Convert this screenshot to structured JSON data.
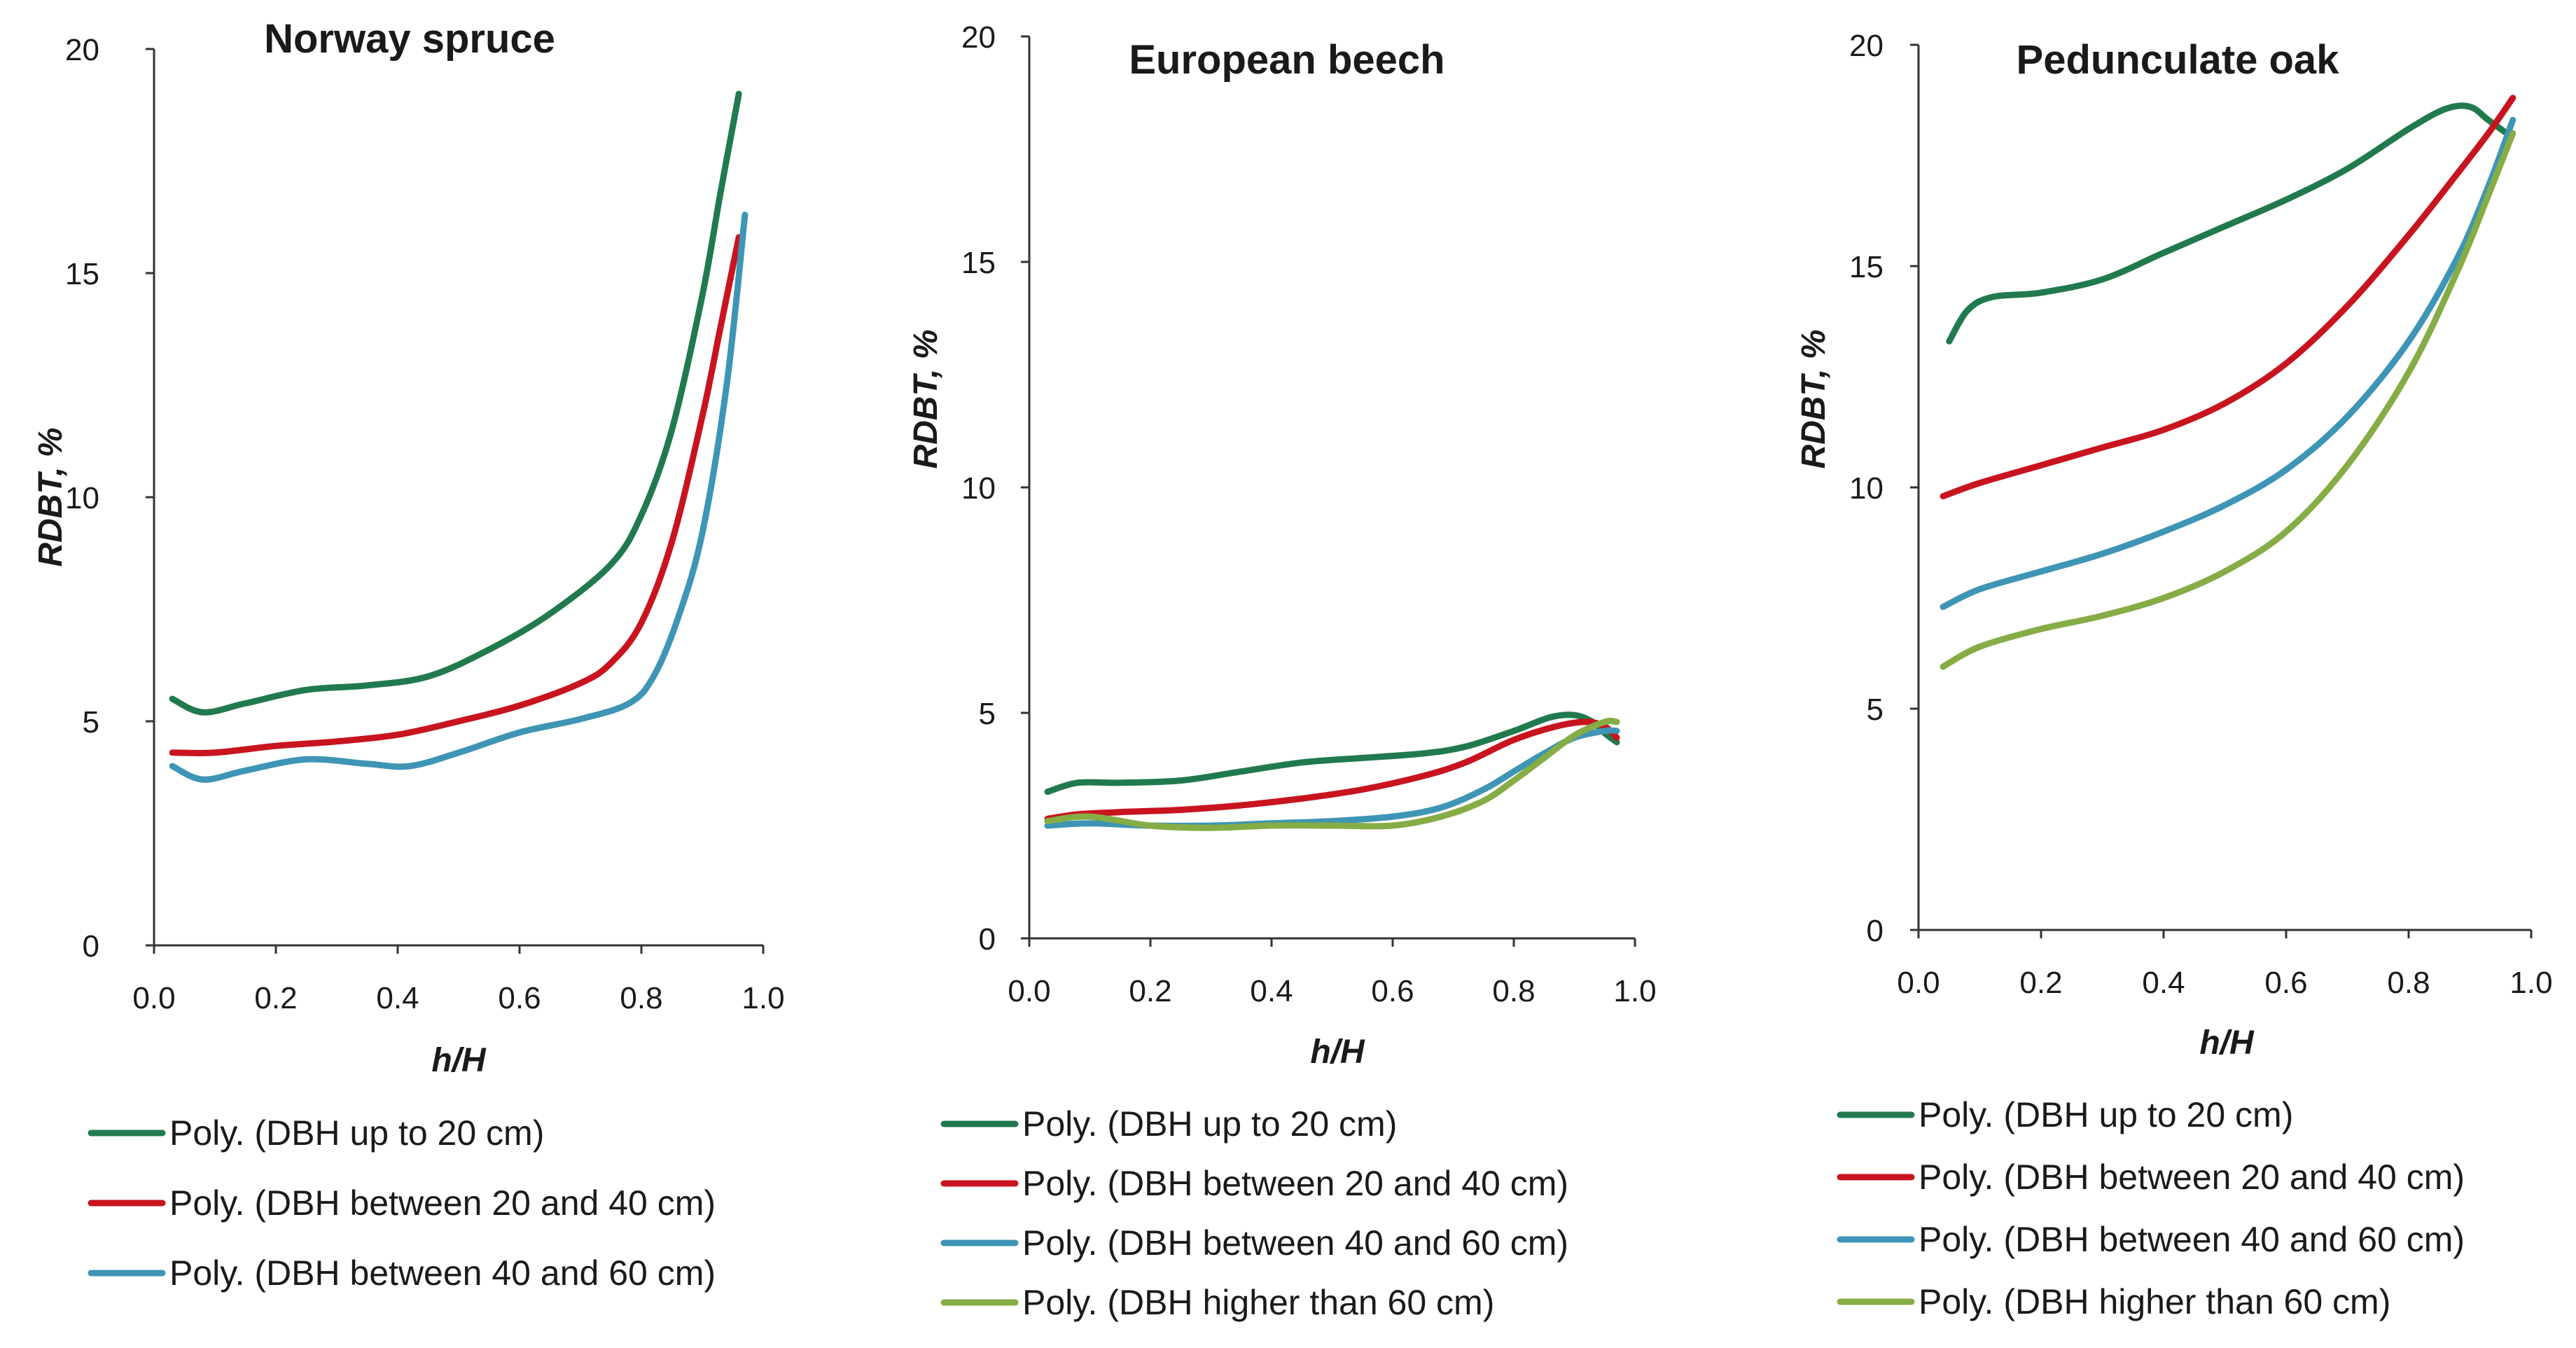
{
  "colors": {
    "dbh_up_to_20": "#217a4e",
    "dbh_20_40": "#c8141e",
    "dbh_40_60": "#3e95b5",
    "dbh_over_60": "#86ac45"
  },
  "chart_data": [
    {
      "type": "line",
      "title": "Norway spruce",
      "xlabel": "h/H",
      "ylabel": "RDBT, %",
      "xlim": [
        0,
        1.0
      ],
      "ylim": [
        0,
        20
      ],
      "xticks": [
        "0.0",
        "0.2",
        "0.4",
        "0.6",
        "0.8",
        "1.0"
      ],
      "yticks": [
        "0",
        "5",
        "10",
        "15",
        "20"
      ],
      "series": [
        {
          "name": "Poly. (DBH up to 20 cm)",
          "color_key": "dbh_up_to_20",
          "x": [
            0.03,
            0.08,
            0.15,
            0.25,
            0.35,
            0.45,
            0.55,
            0.65,
            0.75,
            0.8,
            0.85,
            0.9,
            0.93,
            0.96
          ],
          "y": [
            5.5,
            5.2,
            5.4,
            5.7,
            5.8,
            6.0,
            6.6,
            7.4,
            8.5,
            9.6,
            11.5,
            14.5,
            16.8,
            19.0
          ]
        },
        {
          "name": "Poly. (DBH between 20 and 40 cm)",
          "color_key": "dbh_20_40",
          "x": [
            0.03,
            0.1,
            0.2,
            0.3,
            0.4,
            0.5,
            0.6,
            0.7,
            0.75,
            0.8,
            0.85,
            0.9,
            0.93,
            0.96
          ],
          "y": [
            4.3,
            4.3,
            4.45,
            4.55,
            4.7,
            5.0,
            5.35,
            5.85,
            6.3,
            7.2,
            9.0,
            11.8,
            13.8,
            15.8
          ]
        },
        {
          "name": "Poly. (DBH between 40 and 60 cm)",
          "color_key": "dbh_40_60",
          "x": [
            0.03,
            0.08,
            0.15,
            0.25,
            0.35,
            0.42,
            0.5,
            0.6,
            0.7,
            0.78,
            0.82,
            0.86,
            0.9,
            0.94,
            0.97
          ],
          "y": [
            4.0,
            3.7,
            3.9,
            4.15,
            4.05,
            4.0,
            4.3,
            4.75,
            5.05,
            5.4,
            6.0,
            7.3,
            9.2,
            12.5,
            16.3
          ]
        }
      ]
    },
    {
      "type": "line",
      "title": "European beech",
      "xlabel": "h/H",
      "ylabel": "RDBT, %",
      "xlim": [
        0,
        1.0
      ],
      "ylim": [
        0,
        20
      ],
      "xticks": [
        "0.0",
        "0.2",
        "0.4",
        "0.6",
        "0.8",
        "1.0"
      ],
      "yticks": [
        "0",
        "5",
        "10",
        "15",
        "20"
      ],
      "series": [
        {
          "name": "Poly. (DBH up to 20 cm)",
          "color_key": "dbh_up_to_20",
          "x": [
            0.03,
            0.08,
            0.15,
            0.25,
            0.35,
            0.45,
            0.55,
            0.65,
            0.72,
            0.8,
            0.86,
            0.9,
            0.93,
            0.95,
            0.97
          ],
          "y": [
            3.25,
            3.45,
            3.45,
            3.5,
            3.7,
            3.9,
            4.0,
            4.1,
            4.25,
            4.6,
            4.9,
            4.95,
            4.8,
            4.55,
            4.35
          ]
        },
        {
          "name": "Poly. (DBH between 20 and 40 cm)",
          "color_key": "dbh_20_40",
          "x": [
            0.03,
            0.08,
            0.15,
            0.25,
            0.35,
            0.45,
            0.55,
            0.65,
            0.72,
            0.8,
            0.87,
            0.92,
            0.95,
            0.97
          ],
          "y": [
            2.65,
            2.75,
            2.8,
            2.85,
            2.95,
            3.1,
            3.3,
            3.6,
            3.9,
            4.4,
            4.7,
            4.8,
            4.7,
            4.45
          ]
        },
        {
          "name": "Poly. (DBH between 40 and 60 cm)",
          "color_key": "dbh_40_60",
          "x": [
            0.03,
            0.1,
            0.2,
            0.3,
            0.4,
            0.5,
            0.6,
            0.68,
            0.75,
            0.8,
            0.85,
            0.9,
            0.95,
            0.97
          ],
          "y": [
            2.5,
            2.55,
            2.5,
            2.5,
            2.55,
            2.6,
            2.7,
            2.9,
            3.3,
            3.7,
            4.1,
            4.45,
            4.6,
            4.6
          ]
        },
        {
          "name": "Poly. (DBH higher than 60 cm)",
          "color_key": "dbh_over_60",
          "x": [
            0.03,
            0.1,
            0.2,
            0.3,
            0.4,
            0.5,
            0.6,
            0.68,
            0.75,
            0.8,
            0.85,
            0.9,
            0.95,
            0.97
          ],
          "y": [
            2.6,
            2.7,
            2.5,
            2.45,
            2.5,
            2.5,
            2.5,
            2.7,
            3.05,
            3.5,
            4.0,
            4.5,
            4.8,
            4.8
          ]
        }
      ]
    },
    {
      "type": "line",
      "title": "Pedunculate oak",
      "xlabel": "h/H",
      "ylabel": "RDBT, %",
      "xlim": [
        0,
        1.0
      ],
      "ylim": [
        0,
        20
      ],
      "xticks": [
        "0.0",
        "0.2",
        "0.4",
        "0.6",
        "0.8",
        "1.0"
      ],
      "yticks": [
        "0",
        "5",
        "10",
        "15",
        "20"
      ],
      "series": [
        {
          "name": "Poly. (DBH up to 20 cm)",
          "color_key": "dbh_up_to_20",
          "x": [
            0.05,
            0.08,
            0.12,
            0.2,
            0.3,
            0.4,
            0.5,
            0.6,
            0.7,
            0.8,
            0.86,
            0.9,
            0.93,
            0.96
          ],
          "y": [
            13.3,
            14.0,
            14.3,
            14.4,
            14.7,
            15.3,
            15.9,
            16.5,
            17.2,
            18.1,
            18.55,
            18.6,
            18.3,
            18.0
          ]
        },
        {
          "name": "Poly. (DBH between 20 and 40 cm)",
          "color_key": "dbh_20_40",
          "x": [
            0.04,
            0.1,
            0.2,
            0.3,
            0.4,
            0.5,
            0.6,
            0.7,
            0.8,
            0.88,
            0.93,
            0.97
          ],
          "y": [
            9.8,
            10.1,
            10.5,
            10.9,
            11.3,
            11.9,
            12.8,
            14.1,
            15.7,
            17.1,
            18.0,
            18.8
          ]
        },
        {
          "name": "Poly. (DBH between 40 and 60 cm)",
          "color_key": "dbh_40_60",
          "x": [
            0.04,
            0.1,
            0.2,
            0.3,
            0.4,
            0.5,
            0.6,
            0.7,
            0.8,
            0.88,
            0.93,
            0.97
          ],
          "y": [
            7.3,
            7.7,
            8.1,
            8.5,
            9.0,
            9.6,
            10.4,
            11.6,
            13.3,
            15.2,
            16.8,
            18.3
          ]
        },
        {
          "name": "Poly. (DBH higher than 60 cm)",
          "color_key": "dbh_over_60",
          "x": [
            0.04,
            0.1,
            0.2,
            0.3,
            0.4,
            0.5,
            0.6,
            0.7,
            0.8,
            0.88,
            0.93,
            0.97
          ],
          "y": [
            5.95,
            6.4,
            6.8,
            7.1,
            7.5,
            8.1,
            9.0,
            10.5,
            12.6,
            14.9,
            16.6,
            18.0
          ]
        }
      ]
    }
  ]
}
